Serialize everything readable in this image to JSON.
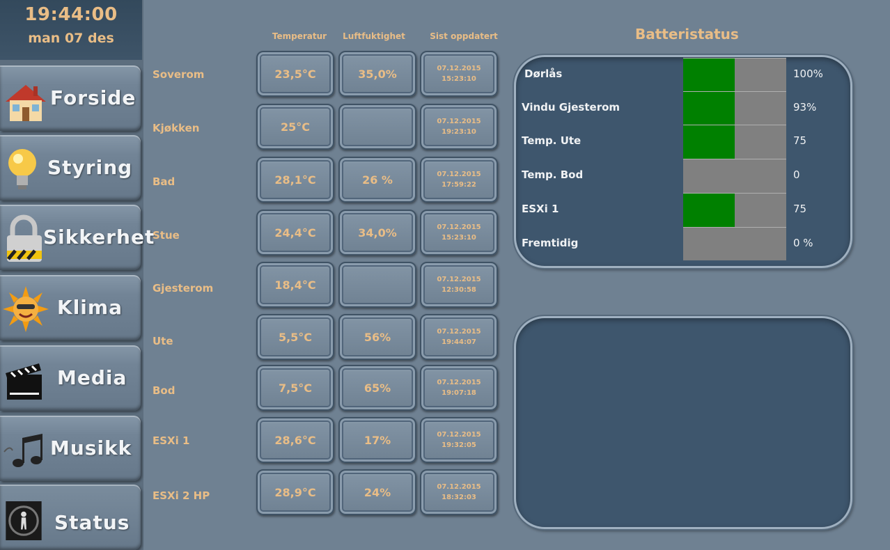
{
  "clock": {
    "time": "19:44:00",
    "date": "man 07 des"
  },
  "nav": [
    {
      "label": "Forside",
      "icon": "house-icon"
    },
    {
      "label": "Styring",
      "icon": "lightbulb-icon"
    },
    {
      "label": "Sikkerhet",
      "icon": "padlock-icon"
    },
    {
      "label": "Klima",
      "icon": "sun-icon"
    },
    {
      "label": "Media",
      "icon": "clapperboard-icon"
    },
    {
      "label": "Musikk",
      "icon": "music-notes-icon"
    },
    {
      "label": "Status",
      "icon": "silhouette-icon"
    }
  ],
  "table": {
    "headers": {
      "temperature": "Temperatur",
      "humidity": "Luftfuktighet",
      "updated": "Sist oppdatert"
    },
    "rows": [
      {
        "room": "Soverom",
        "temp": "23,5°C",
        "hum": "35,0%",
        "date": "07.12.2015",
        "time": "15:23:10"
      },
      {
        "room": "Kjøkken",
        "temp": "25°C",
        "hum": "",
        "date": "07.12.2015",
        "time": "19:23:10"
      },
      {
        "room": "Bad",
        "temp": "28,1°C",
        "hum": "26 %",
        "date": "07.12.2015",
        "time": "17:59:22"
      },
      {
        "room": "Stue",
        "temp": "24,4°C",
        "hum": "34,0%",
        "date": "07.12.2015",
        "time": "15:23:10"
      },
      {
        "room": "Gjesterom",
        "temp": "18,4°C",
        "hum": "",
        "date": "07.12.2015",
        "time": "12:30:58"
      },
      {
        "room": "Ute",
        "temp": "5,5°C",
        "hum": "56%",
        "date": "07.12.2015",
        "time": "19:44:07"
      },
      {
        "room": "Bod",
        "temp": "7,5°C",
        "hum": "65%",
        "date": "07.12.2015",
        "time": "19:07:18"
      },
      {
        "room": "ESXi 1",
        "temp": "28,6°C",
        "hum": "17%",
        "date": "07.12.2015",
        "time": "19:32:05"
      },
      {
        "room": "ESXi 2 HP",
        "temp": "28,9°C",
        "hum": "24%",
        "date": "07.12.2015",
        "time": "18:32:03"
      }
    ]
  },
  "battery": {
    "title": "Batteristatus",
    "items": [
      {
        "name": "Dørlås",
        "value": "100%",
        "fill": 0.5
      },
      {
        "name": "Vindu Gjesterom",
        "value": "93%",
        "fill": 0.5
      },
      {
        "name": "Temp. Ute",
        "value": "75",
        "fill": 0.5
      },
      {
        "name": "Temp. Bod",
        "value": "0",
        "fill": 0
      },
      {
        "name": "ESXi 1",
        "value": "75",
        "fill": 0.5
      },
      {
        "name": "Fremtidig",
        "value": "0 %",
        "fill": 0
      }
    ],
    "fill_color": "#008000",
    "empty_color": "#808080"
  },
  "colors": {
    "accent": "#e9bd86",
    "panel": "#3e566d",
    "background": "#6f8192"
  }
}
